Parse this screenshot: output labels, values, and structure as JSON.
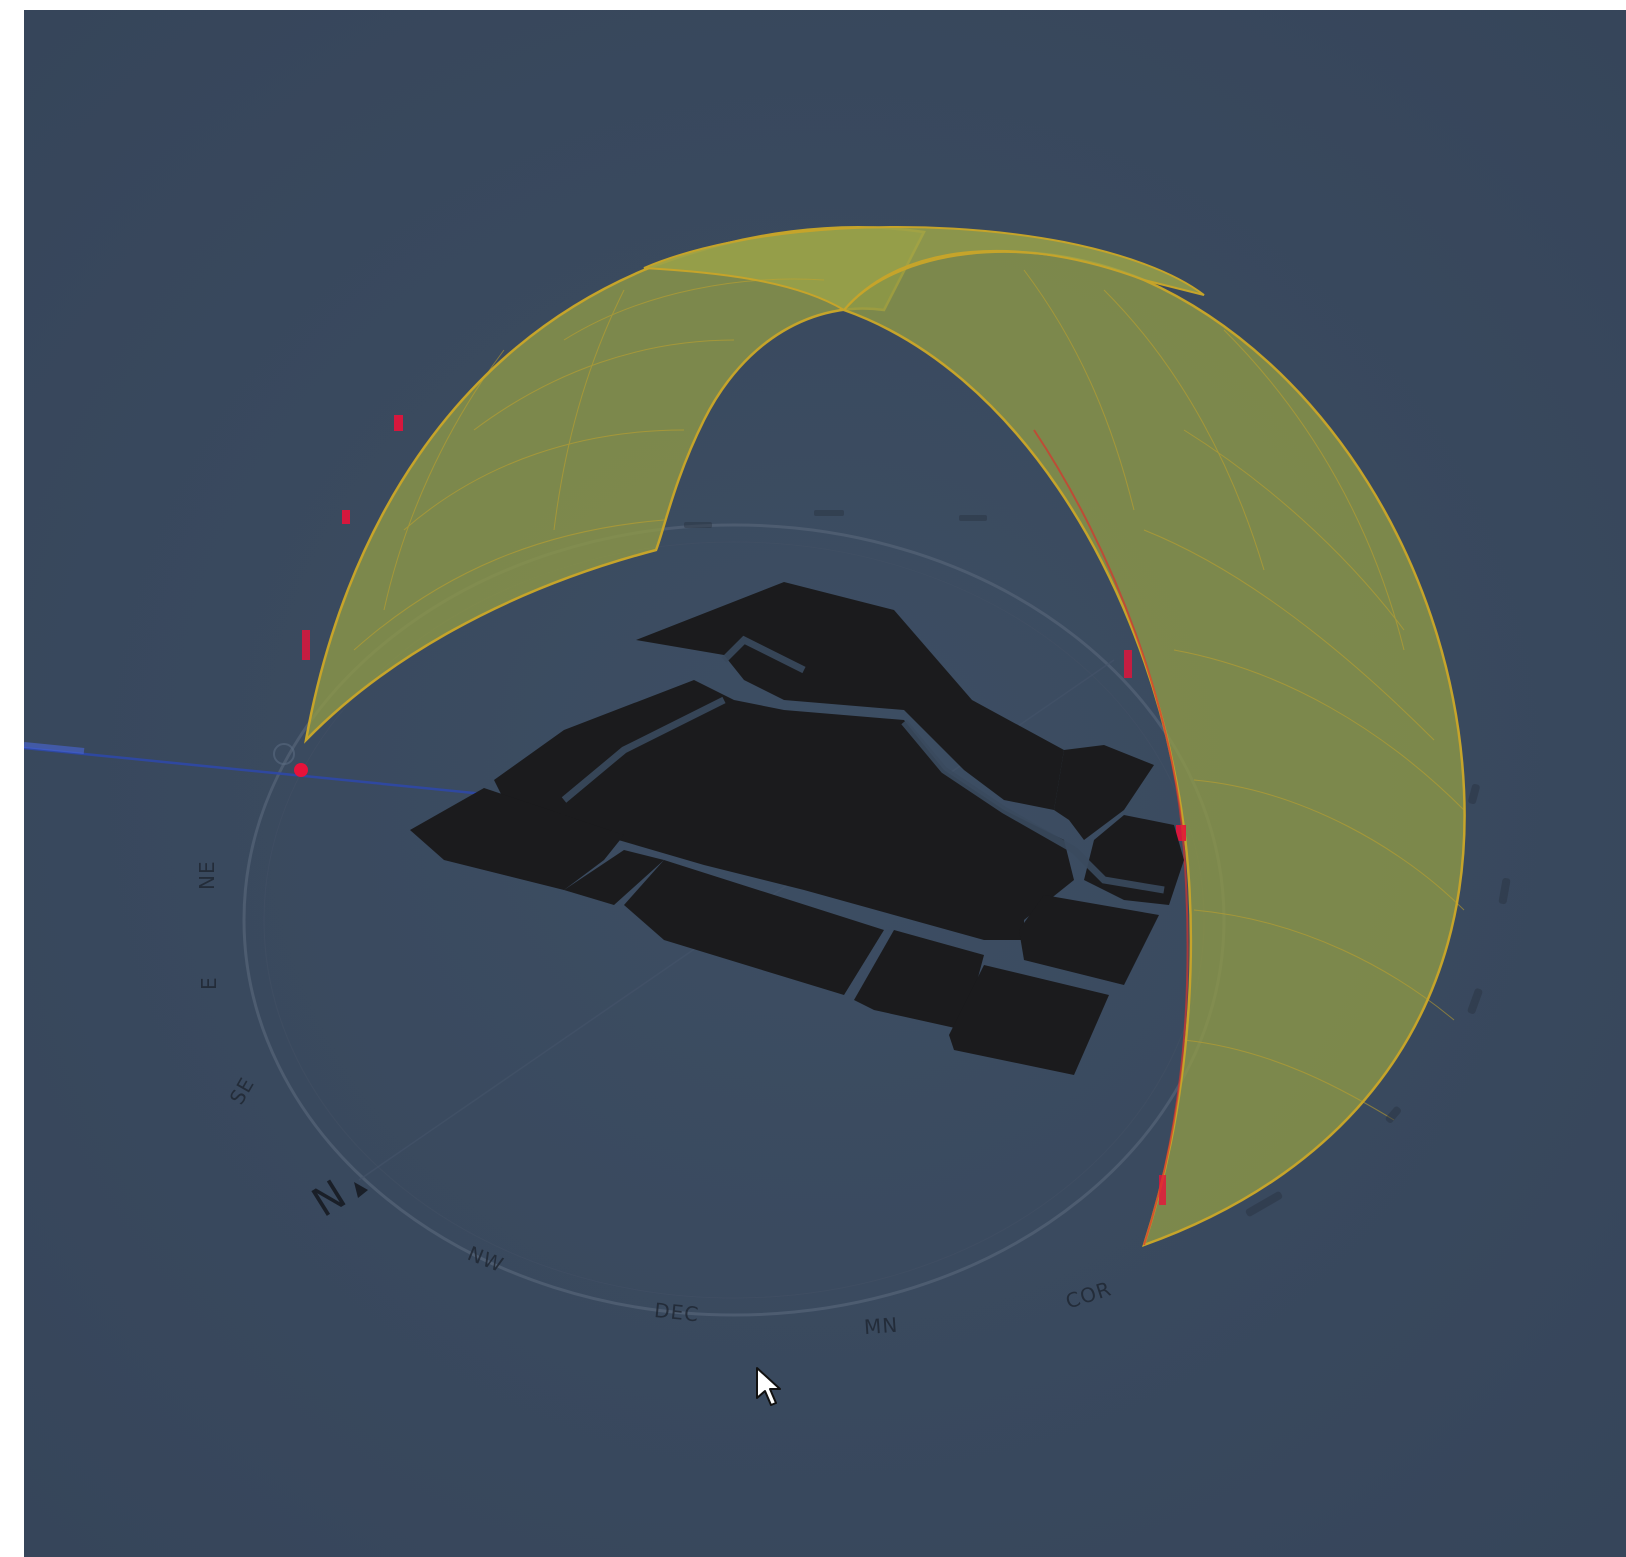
{
  "scene": {
    "background_color": "#3a4a5e",
    "sun_path_fill": "#8f9a46",
    "sun_path_stroke": "#c6a42a",
    "building_color": "#1b1b1d",
    "compass_ring_color": "#4d5c70",
    "sun_ray_color": "#2e48a8",
    "sun_marker_color": "#e8123a"
  },
  "compass": {
    "north_label": "N",
    "labels": {
      "ne": "NE",
      "e": "E",
      "se": "SE",
      "nw": "NW",
      "dec": "DEC",
      "mn": "MN",
      "cor": "COR"
    }
  },
  "icons": {
    "cursor": "mouse-pointer-icon",
    "north_arrow": "north-arrow-icon"
  }
}
